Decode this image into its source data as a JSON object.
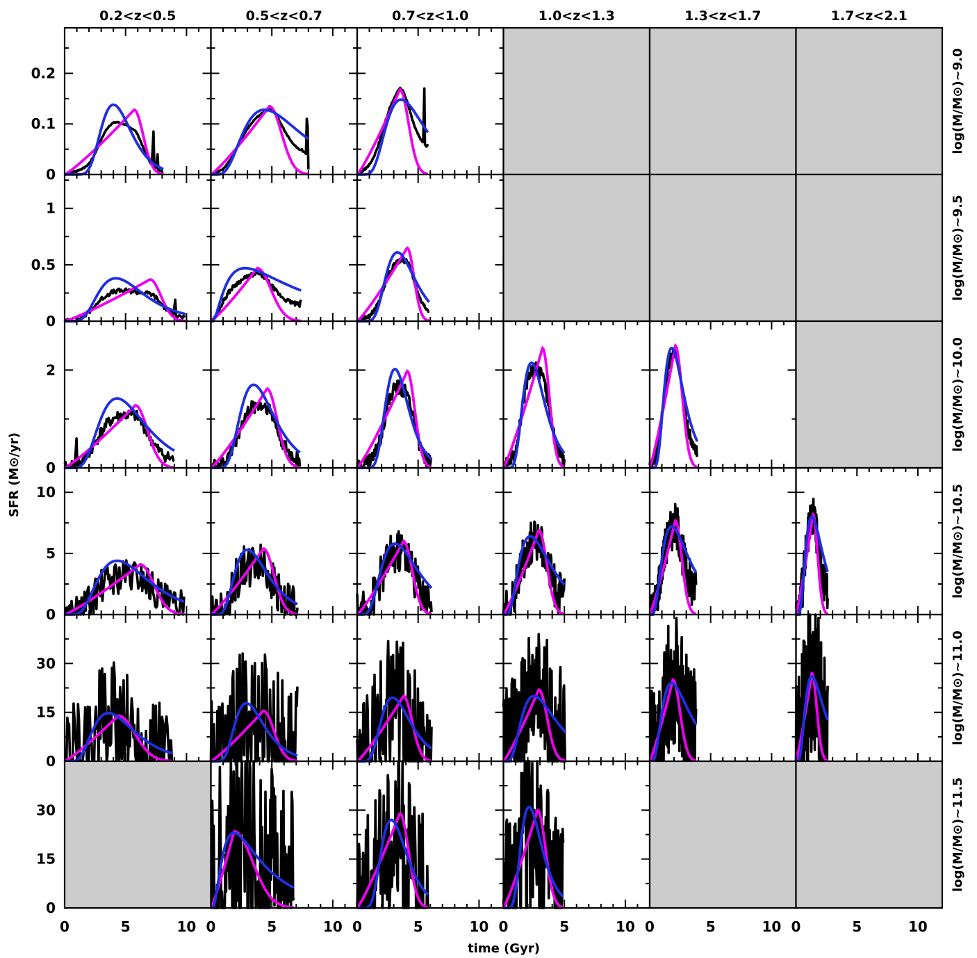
{
  "chart_data": {
    "type": "line",
    "layout": "6x6 grid of small-multiple line panels; empty panels shaded gray",
    "colors": {
      "empty_panel": "#cccccc",
      "series": [
        "#000000",
        "#ee00ee",
        "#1f2fe0"
      ]
    },
    "xlabel": "time (Gyr)",
    "ylabel": "SFR (M⊙/yr)",
    "xlim": [
      0,
      12
    ],
    "xticks": [
      0,
      5,
      10
    ],
    "column_titles": [
      "0.2<z<0.5",
      "0.5<z<0.7",
      "0.7<z<1.0",
      "1.0<z<1.3",
      "1.3<z<1.7",
      "1.7<z<2.1"
    ],
    "rows": [
      {
        "label": "log(M/M⊙)~9.0",
        "ylim": [
          0,
          0.29
        ],
        "yticks": [
          0,
          0.1,
          0.2
        ],
        "ytick_labels": [
          "0",
          "0.1",
          "0.2"
        ],
        "panels": [
          {
            "tmax": 8.1,
            "peak": 0.12,
            "blue": [
              4.0,
              1.25,
              0.138
            ],
            "magenta": [
              5.7,
              0.128
            ],
            "noise": 0.004,
            "tail": [
              [
                7.3,
                0.085
              ],
              [
                7.6,
                0.04
              ]
            ]
          },
          {
            "tmax": 8.0,
            "peak": 0.13,
            "blue": [
              4.4,
              2.4,
              0.128
            ],
            "magenta": [
              4.8,
              0.135
            ],
            "noise": 0.004,
            "tail": [
              [
                7.5,
                0.05
              ],
              [
                7.9,
                0.18
              ],
              [
                8.0,
                0.01
              ]
            ]
          },
          {
            "tmax": 5.8,
            "peak": 0.17,
            "blue": [
              3.6,
              1.6,
              0.148
            ],
            "magenta": [
              3.5,
              0.168
            ],
            "noise": 0.006,
            "tail": [
              [
                5.5,
                0.17
              ],
              [
                5.8,
                0.06
              ]
            ]
          },
          null,
          null,
          null
        ]
      },
      {
        "label": "log(M/M⊙)~9.5",
        "ylim": [
          0,
          1.3
        ],
        "yticks": [
          0,
          0.5,
          1
        ],
        "ytick_labels": [
          "0",
          "0.5",
          "1"
        ],
        "panels": [
          {
            "tmax": 9.9,
            "peak": 0.33,
            "blue": [
              4.2,
              1.9,
              0.38
            ],
            "magenta": [
              7.0,
              0.37
            ],
            "noise": 0.015,
            "tail": [
              [
                9.1,
                0.19
              ]
            ]
          },
          {
            "tmax": 7.4,
            "peak": 0.44,
            "blue": [
              2.8,
              2.6,
              0.47
            ],
            "magenta": [
              3.8,
              0.47
            ],
            "noise": 0.015,
            "tail": [
              [
                7.4,
                0.19
              ]
            ]
          },
          {
            "tmax": 5.9,
            "peak": 0.58,
            "blue": [
              3.3,
              1.2,
              0.61
            ],
            "magenta": [
              4.1,
              0.65
            ],
            "noise": 0.015,
            "tail": []
          },
          null,
          null,
          null
        ]
      },
      {
        "label": "log(M/M⊙)~10.0",
        "ylim": [
          0,
          3.0
        ],
        "yticks": [
          0,
          2
        ],
        "ytick_labels": [
          "0",
          "2"
        ],
        "panels": [
          {
            "tmax": 9.0,
            "peak": 1.2,
            "blue": [
              4.3,
              1.9,
              1.42
            ],
            "magenta": [
              5.8,
              1.28
            ],
            "noise": 0.04,
            "tail": [
              [
                1.0,
                0.6
              ]
            ]
          },
          {
            "tmax": 7.3,
            "peak": 1.42,
            "blue": [
              3.5,
              1.4,
              1.7
            ],
            "magenta": [
              4.6,
              1.62
            ],
            "noise": 0.05,
            "tail": []
          },
          {
            "tmax": 6.1,
            "peak": 1.85,
            "blue": [
              3.1,
              0.95,
              2.02
            ],
            "magenta": [
              4.1,
              1.98
            ],
            "noise": 0.05,
            "tail": []
          },
          {
            "tmax": 5.0,
            "peak": 2.3,
            "blue": [
              2.3,
              0.9,
              2.15
            ],
            "magenta": [
              3.2,
              2.45
            ],
            "noise": 0.05,
            "tail": []
          },
          {
            "tmax": 3.9,
            "peak": 2.45,
            "blue": [
              1.8,
              0.8,
              2.45
            ],
            "magenta": [
              2.1,
              2.5
            ],
            "noise": 0.04,
            "tail": []
          },
          null
        ]
      },
      {
        "label": "log(M/M⊙)~10.5",
        "ylim": [
          0,
          12
        ],
        "yticks": [
          0,
          5,
          10
        ],
        "ytick_labels": [
          "0",
          "5",
          "10"
        ],
        "panels": [
          {
            "tmax": 9.8,
            "peak": 3.6,
            "blue": [
              4.3,
              2.1,
              4.4
            ],
            "magenta": [
              6.2,
              4.1
            ],
            "noise": 0.12,
            "tail": []
          },
          {
            "tmax": 7.1,
            "peak": 4.7,
            "blue": [
              3.0,
              1.35,
              5.3
            ],
            "magenta": [
              4.3,
              5.4
            ],
            "noise": 0.15,
            "tail": []
          },
          {
            "tmax": 6.1,
            "peak": 5.5,
            "blue": [
              3.1,
              1.5,
              5.8
            ],
            "magenta": [
              3.8,
              6.0
            ],
            "noise": 0.15,
            "tail": []
          },
          {
            "tmax": 5.0,
            "peak": 6.5,
            "blue": [
              2.2,
              1.3,
              6.4
            ],
            "magenta": [
              2.9,
              6.9
            ],
            "noise": 0.15,
            "tail": []
          },
          {
            "tmax": 3.8,
            "peak": 7.4,
            "blue": [
              1.8,
              1.1,
              7.2
            ],
            "magenta": [
              2.1,
              7.7
            ],
            "noise": 0.15,
            "tail": []
          },
          {
            "tmax": 2.6,
            "peak": 8.0,
            "blue": [
              1.3,
              0.7,
              8.0
            ],
            "magenta": [
              1.4,
              8.2
            ],
            "noise": 0.15,
            "tail": [
              [
                2.5,
                1.8
              ]
            ]
          }
        ]
      },
      {
        "label": "log(M/M⊙)~11.0",
        "ylim": [
          0,
          45
        ],
        "yticks": [
          0,
          15,
          30
        ],
        "ytick_labels": [
          "0",
          "15",
          "30"
        ],
        "panels": [
          {
            "tmax": 8.8,
            "peak": 13.5,
            "blue": [
              3.6,
              1.7,
              14.8
            ],
            "magenta": [
              4.4,
              14.0
            ],
            "noise": 0.4,
            "tail": []
          },
          {
            "tmax": 7.1,
            "peak": 15.5,
            "blue": [
              2.9,
              1.2,
              17.8
            ],
            "magenta": [
              4.3,
              15.5
            ],
            "noise": 0.5,
            "tail": []
          },
          {
            "tmax": 6.1,
            "peak": 18.5,
            "blue": [
              2.9,
              1.2,
              19.5
            ],
            "magenta": [
              3.8,
              20.0
            ],
            "noise": 0.5,
            "tail": []
          },
          {
            "tmax": 5.1,
            "peak": 21.0,
            "blue": [
              2.5,
              1.4,
              20.0
            ],
            "magenta": [
              2.9,
              22.0
            ],
            "noise": 0.5,
            "tail": []
          },
          {
            "tmax": 3.8,
            "peak": 25.0,
            "blue": [
              1.8,
              1.1,
              24.0
            ],
            "magenta": [
              1.9,
              25.0
            ],
            "noise": 0.5,
            "tail": [
              [
                3.6,
                10.5
              ],
              [
                3.8,
                16.0
              ]
            ]
          },
          {
            "tmax": 2.6,
            "peak": 29.0,
            "blue": [
              1.3,
              0.75,
              26.0
            ],
            "magenta": [
              1.3,
              27.0
            ],
            "noise": 0.6,
            "tail": [
              [
                2.4,
                11.0
              ],
              [
                2.5,
                19.0
              ]
            ]
          }
        ]
      },
      {
        "label": "log(M/M⊙)~11.5",
        "ylim": [
          0,
          45
        ],
        "yticks": [
          0,
          15,
          30
        ],
        "ytick_labels": [
          "0",
          "15",
          "30"
        ],
        "panels": [
          null,
          {
            "tmax": 6.8,
            "peak": 23.0,
            "blue": [
              1.9,
              1.5,
              23.0
            ],
            "magenta": [
              1.9,
              23.5
            ],
            "noise": 0.8,
            "tail": [
              [
                5.6,
                9.0
              ],
              [
                5.9,
                5.0
              ],
              [
                6.2,
                16.5
              ],
              [
                6.5,
                4.0
              ],
              [
                6.8,
                3.0
              ]
            ]
          },
          {
            "tmax": 5.8,
            "peak": 25.0,
            "blue": [
              2.8,
              1.05,
              27.0
            ],
            "magenta": [
              3.5,
              29.0
            ],
            "noise": 0.6,
            "tail": [
              [
                1.2,
                11.5
              ],
              [
                1.6,
                11.0
              ]
            ]
          },
          {
            "tmax": 4.9,
            "peak": 28.5,
            "blue": [
              2.1,
              0.85,
              31.0
            ],
            "magenta": [
              2.8,
              30.0
            ],
            "noise": 0.6,
            "tail": []
          },
          null,
          null
        ]
      }
    ]
  }
}
